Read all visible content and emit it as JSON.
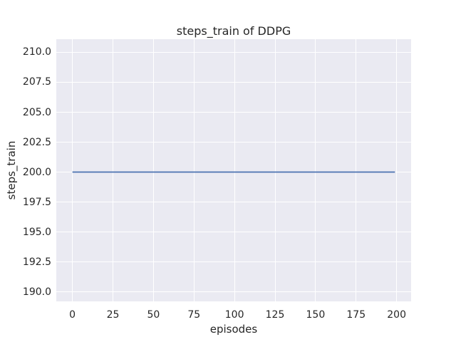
{
  "chart_data": {
    "type": "line",
    "title": "steps_train of DDPG",
    "xlabel": "episodes",
    "ylabel": "steps_train",
    "x_ticks": {
      "values": [
        0,
        25,
        50,
        75,
        100,
        125,
        150,
        175,
        200
      ],
      "labels": [
        "0",
        "25",
        "50",
        "75",
        "100",
        "125",
        "150",
        "175",
        "200"
      ]
    },
    "y_ticks": {
      "values": [
        190,
        192.5,
        195,
        197.5,
        200,
        202.5,
        205,
        207.5,
        210
      ],
      "labels": [
        "190.0",
        "192.5",
        "195.0",
        "197.5",
        "200.0",
        "202.5",
        "205.0",
        "207.5",
        "210.0"
      ]
    },
    "xlim": [
      -9.95,
      208.95
    ],
    "ylim": [
      189.2,
      211.1
    ],
    "grid": true,
    "legend": false,
    "series": [
      {
        "name": "steps_train",
        "x": [
          0,
          199
        ],
        "y": [
          200,
          200
        ],
        "color": "#4C72B0",
        "linewidth": 1.8
      }
    ],
    "style": {
      "figure_background": "#FFFFFF",
      "axes_background": "#EAEAF2",
      "grid_color": "#FFFFFF",
      "text_color": "#262626"
    }
  }
}
